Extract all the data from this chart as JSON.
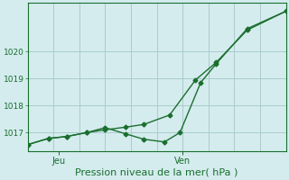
{
  "xlabel": "Pression niveau de la mer( hPa )",
  "bg_color": "#d4ecee",
  "grid_color": "#aacccc",
  "line_color": "#1a6e2e",
  "ylim": [
    1016.3,
    1021.8
  ],
  "xlim": [
    0,
    10
  ],
  "yticks": [
    1017,
    1018,
    1019,
    1020
  ],
  "xtick_positions": [
    1.2,
    6.0
  ],
  "xtick_labels": [
    "Jeu",
    "Ven"
  ],
  "vlines": [
    1.2,
    6.0
  ],
  "n_vgrid": 10,
  "line1_x": [
    0,
    0.8,
    1.5,
    2.3,
    3.0,
    3.8,
    4.5,
    5.5,
    6.5,
    7.3,
    8.5,
    10.0
  ],
  "line1_y": [
    1016.55,
    1016.78,
    1016.85,
    1017.0,
    1017.1,
    1017.2,
    1017.3,
    1017.65,
    1018.95,
    1019.6,
    1020.8,
    1021.5
  ],
  "line2_x": [
    0,
    0.8,
    1.5,
    2.3,
    3.0,
    3.8,
    4.5,
    5.3,
    5.9,
    6.7,
    7.3,
    8.5,
    10.0
  ],
  "line2_y": [
    1016.55,
    1016.78,
    1016.85,
    1017.0,
    1017.18,
    1016.95,
    1016.75,
    1016.65,
    1017.0,
    1018.85,
    1019.55,
    1020.85,
    1021.5
  ],
  "marker": "D",
  "marker_size": 2.5,
  "linewidth": 1.0,
  "ytick_fontsize": 6.5,
  "xtick_fontsize": 7,
  "xlabel_fontsize": 8
}
